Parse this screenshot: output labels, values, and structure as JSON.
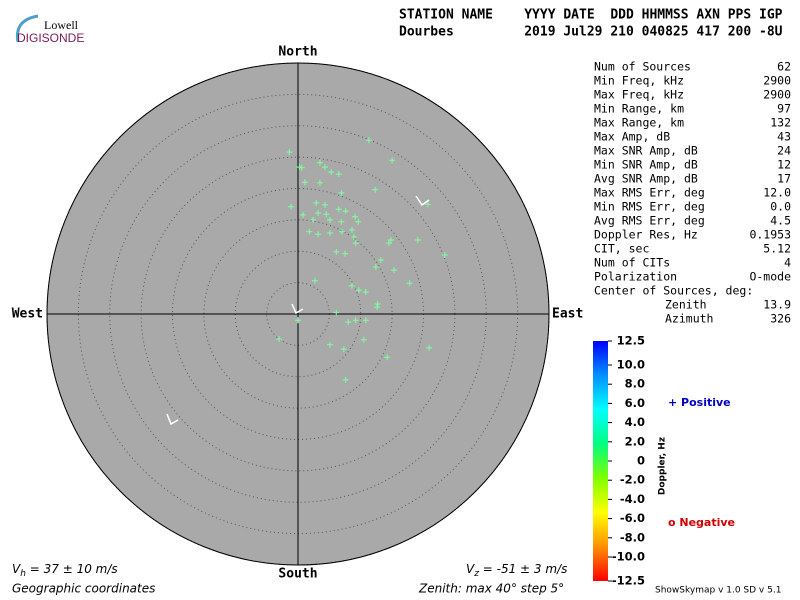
{
  "header": {
    "logo_top": "Lowell",
    "logo_bottom": "DIGISONDE",
    "row1": "STATION NAME    YYYY DATE  DDD HHMMSS AXN PPS IGP",
    "row2": "Dourbes         2019 Jul29 210 040825 417 200 -8U"
  },
  "stats": [
    [
      "Num of Sources",
      "62"
    ],
    [
      "Min Freq, kHz",
      "2900"
    ],
    [
      "Max Freq, kHz",
      "2900"
    ],
    [
      "Min Range, km",
      "97"
    ],
    [
      "Max Range, km",
      "132"
    ],
    [
      "Max Amp, dB",
      "43"
    ],
    [
      "Max SNR Amp, dB",
      "24"
    ],
    [
      "Min SNR Amp, dB",
      "12"
    ],
    [
      "Avg SNR Amp, dB",
      "17"
    ],
    [
      "Max RMS Err, deg",
      "12.0"
    ],
    [
      "Min RMS Err, deg",
      "0.0"
    ],
    [
      "Avg RMS Err, deg",
      "4.5"
    ],
    [
      "Doppler Res, Hz",
      "0.1953"
    ],
    [
      "CIT, sec",
      "5.12"
    ],
    [
      "Num of CITs",
      "4"
    ],
    [
      "Polarization",
      "O-mode"
    ]
  ],
  "center": {
    "title": "Center of Sources, deg:",
    "rows": [
      [
        "Zenith",
        "13.9"
      ],
      [
        "Azimuth",
        "326"
      ]
    ]
  },
  "chart_data": {
    "type": "scatter",
    "directions": {
      "north": "North",
      "south": "South",
      "east": "East",
      "west": "West"
    },
    "xlim": [
      -40,
      40
    ],
    "ylim": [
      -40,
      40
    ],
    "rticks": [
      5,
      10,
      15,
      20,
      25,
      30,
      35,
      40
    ],
    "background": "#a9a9a9",
    "series": [
      {
        "color": "#80ffa0",
        "x": [
          -1.4,
          0.2,
          0.6,
          3.5,
          4.3,
          5.3,
          6.5,
          11.3,
          15.0,
          1.1,
          3.5,
          6.9,
          12.3,
          20.7,
          -1.1,
          2.9,
          4.3,
          3.2,
          4.5,
          6.5,
          7.6,
          0.8,
          2.4,
          5.1,
          6.9,
          9.1,
          9.6,
          1.8,
          3.2,
          5.1,
          7.0,
          8.9,
          14.8,
          14.5,
          19.1,
          6.1,
          7.5,
          23.4,
          9.2,
          13.2,
          12.4,
          15.3,
          2.7,
          17.8,
          8.6,
          9.7,
          10.8,
          12.7,
          12.6,
          9.2,
          10.8,
          6.1,
          8.0,
          0.0,
          -3.0,
          10.5,
          5.1,
          7.3,
          14.2,
          20.9,
          7.6,
          8.6
        ],
        "values": [
          25.8,
          23.4,
          23.3,
          24.1,
          23.4,
          22.6,
          22.3,
          27.7,
          24.5,
          21.0,
          20.9,
          19.3,
          19.8,
          17.5,
          17.1,
          17.7,
          17.4,
          16.1,
          15.9,
          16.7,
          16.4,
          15.8,
          15.0,
          15.0,
          14.7,
          15.5,
          14.7,
          13.1,
          12.7,
          12.9,
          13.1,
          12.3,
          11.8,
          11.3,
          11.8,
          9.9,
          9.6,
          9.4,
          11.3,
          8.6,
          7.5,
          7.0,
          5.3,
          4.9,
          4.5,
          3.8,
          3.5,
          1.6,
          1.1,
          -1.0,
          -1.0,
          0.2,
          -1.3,
          -1.0,
          -4.0,
          -4.1,
          -4.9,
          -5.6,
          -6.9,
          -5.4,
          -10.5,
          13.4
        ]
      }
    ],
    "colorbar": {
      "label": "Doppler, Hz",
      "lim": [
        -12.5,
        12.5
      ],
      "ticks": [
        12.5,
        {
          "value": 10,
          "label": "10.0"
        },
        {
          "value": 8,
          "label": "8.0"
        },
        {
          "value": 6,
          "label": "6.0"
        },
        {
          "value": 4,
          "label": "4.0"
        },
        {
          "value": 2,
          "label": "2.0"
        },
        0,
        {
          "value": -2,
          "label": "-2.0"
        },
        {
          "value": -4,
          "label": "-4.0"
        },
        {
          "value": -6,
          "label": "-6.0"
        },
        {
          "value": -8,
          "label": "-8.0"
        },
        {
          "value": -10,
          "label": "-10.0"
        },
        -12.5
      ],
      "colors": [
        "#0000ff",
        "#0090ff",
        "#00ffff",
        "#00ff80",
        "#80ff00",
        "#ffff00",
        "#ff9000",
        "#ff0000"
      ]
    },
    "legend": {
      "positive": "+ Positive",
      "positive_color": "#0000c0",
      "negative": "o Negative",
      "negative_color": "#d00000"
    }
  },
  "footer": {
    "vh_symbol": "V",
    "vh_sub": "h",
    "vh_text": " = 37 ± 10 m/s",
    "vz_symbol": "V",
    "vz_sub": "z",
    "vz_text": " = -51 ± 3 m/s",
    "coords": "Geographic coordinates",
    "zenith": "Zenith: max 40°  step 5°",
    "version": "ShowSkymap v 1.0  SD v 5.1"
  }
}
